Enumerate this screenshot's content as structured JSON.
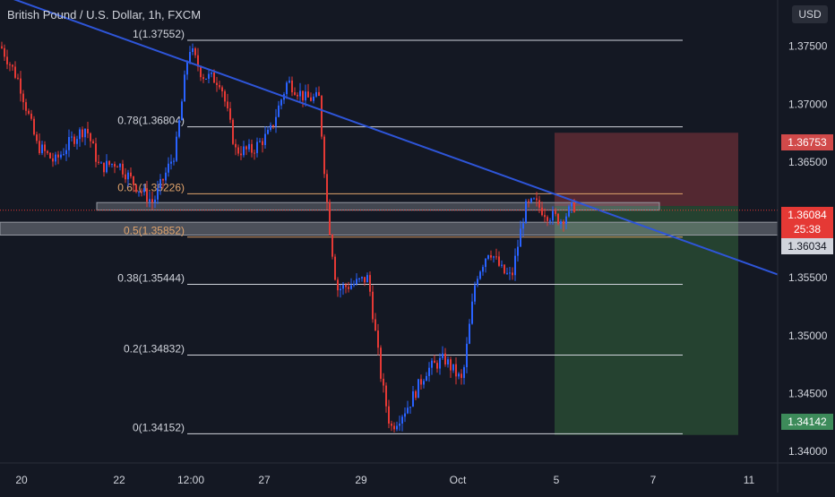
{
  "header": {
    "title": "British Pound / U.S. Dollar, 1h, FXCM",
    "currency_button": "USD"
  },
  "colors": {
    "background": "#141823",
    "bull": "#2962ff",
    "bear": "#e53935",
    "trendline": "#2e55d8",
    "fib_white": "#d1d4dc",
    "fib_orange": "#e0a36b",
    "risk_zone": "#5a2a33",
    "reward_zone": "#274732"
  },
  "price_tags": {
    "stop": "1.36753",
    "current": "1.36084",
    "countdown": "25:38",
    "zone": "1.36034",
    "target": "1.34142"
  },
  "chart_data": {
    "type": "candlestick",
    "title": "British Pound / U.S. Dollar, 1h, FXCM",
    "ylim": [
      1.339,
      1.379
    ],
    "y_ticks": [
      "1.37500",
      "1.37000",
      "1.36500",
      "1.36000",
      "1.35500",
      "1.35000",
      "1.34500",
      "1.34000"
    ],
    "x_ticks": [
      "20",
      "22",
      "12:00",
      "27",
      "29",
      "Oct",
      "5",
      "7",
      "11"
    ],
    "fib_levels": [
      {
        "label": "1(1.37552)",
        "value": 1.37552,
        "color": "white"
      },
      {
        "label": "0.78(1.36804)",
        "value": 1.36804,
        "color": "white"
      },
      {
        "label": "0.61(1.36226)",
        "value": 1.36226,
        "color": "orange"
      },
      {
        "label": "0.5(1.35852)",
        "value": 1.35852,
        "color": "orange"
      },
      {
        "label": "0.38(1.35444)",
        "value": 1.35444,
        "color": "white"
      },
      {
        "label": "0.2(1.34832)",
        "value": 1.34832,
        "color": "white"
      },
      {
        "label": "0(1.34152)",
        "value": 1.34152,
        "color": "white"
      }
    ],
    "trendline": [
      [
        0,
        1.3795
      ],
      [
        932,
        1.3535
      ]
    ],
    "zones": [
      {
        "name": "resistance",
        "from": 1.3613,
        "to": 1.361
      },
      {
        "name": "support",
        "from": 1.3598,
        "to": 1.359
      }
    ],
    "position": {
      "entry": 1.3612,
      "stop": 1.36753,
      "target": 1.34142
    },
    "series": [
      {
        "name": "price",
        "path": [
          [
            0,
            1.375
          ],
          [
            20,
            1.372
          ],
          [
            40,
            1.3665
          ],
          [
            60,
            1.365
          ],
          [
            80,
            1.367
          ],
          [
            95,
            1.368
          ],
          [
            110,
            1.3645
          ],
          [
            130,
            1.365
          ],
          [
            150,
            1.363
          ],
          [
            170,
            1.3615
          ],
          [
            195,
            1.366
          ],
          [
            210,
            1.375
          ],
          [
            225,
            1.3725
          ],
          [
            245,
            1.372
          ],
          [
            262,
            1.366
          ],
          [
            280,
            1.366
          ],
          [
            300,
            1.3675
          ],
          [
            320,
            1.372
          ],
          [
            340,
            1.3705
          ],
          [
            355,
            1.3705
          ],
          [
            365,
            1.3605
          ],
          [
            375,
            1.354
          ],
          [
            395,
            1.3545
          ],
          [
            410,
            1.355
          ],
          [
            425,
            1.346
          ],
          [
            435,
            1.342
          ],
          [
            455,
            1.344
          ],
          [
            475,
            1.347
          ],
          [
            495,
            1.348
          ],
          [
            515,
            1.346
          ],
          [
            530,
            1.355
          ],
          [
            545,
            1.3575
          ],
          [
            560,
            1.3555
          ],
          [
            570,
            1.355
          ],
          [
            585,
            1.361
          ],
          [
            595,
            1.3615
          ],
          [
            610,
            1.3605
          ],
          [
            625,
            1.36
          ],
          [
            640,
            1.3612
          ]
        ]
      }
    ]
  }
}
